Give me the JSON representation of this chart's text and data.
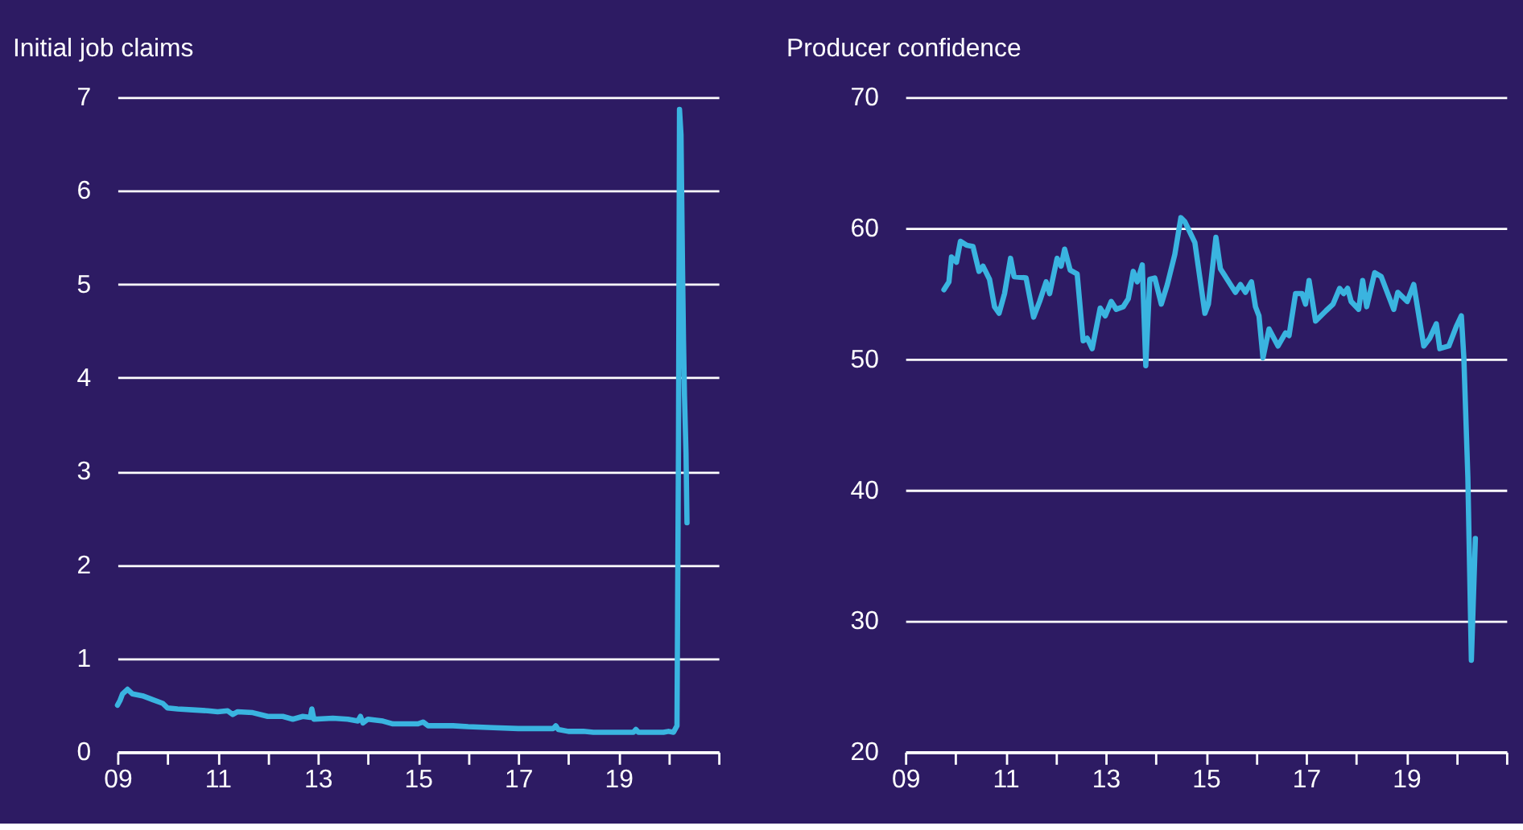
{
  "chart_data": [
    {
      "type": "line",
      "title": "Initial job claims",
      "grid": "y",
      "line_style": "solid",
      "marker": "none",
      "xlim": [
        2009,
        2021
      ],
      "ylim": [
        0,
        7
      ],
      "yticks": [
        0,
        1,
        2,
        3,
        4,
        5,
        6,
        7
      ],
      "xticks": [
        {
          "value": 2009,
          "label": "09"
        },
        {
          "value": 2010,
          "label": null
        },
        {
          "value": 2011,
          "label": "11"
        },
        {
          "value": 2012,
          "label": null
        },
        {
          "value": 2013,
          "label": "13"
        },
        {
          "value": 2014,
          "label": null
        },
        {
          "value": 2015,
          "label": "15"
        },
        {
          "value": 2016,
          "label": null
        },
        {
          "value": 2017,
          "label": "17"
        },
        {
          "value": 2018,
          "label": null
        },
        {
          "value": 2019,
          "label": "19"
        },
        {
          "value": 2020,
          "label": null
        },
        {
          "value": 2021,
          "label": null
        }
      ],
      "x": [
        2009.0,
        2009.05,
        2009.1,
        2009.2,
        2009.3,
        2009.5,
        2009.7,
        2009.9,
        2010.0,
        2010.2,
        2010.5,
        2010.8,
        2011.0,
        2011.2,
        2011.3,
        2011.4,
        2011.7,
        2012.0,
        2012.3,
        2012.5,
        2012.7,
        2012.85,
        2012.88,
        2012.92,
        2013.3,
        2013.6,
        2013.8,
        2013.85,
        2013.9,
        2014.0,
        2014.3,
        2014.5,
        2015.0,
        2015.1,
        2015.2,
        2015.7,
        2016.0,
        2016.5,
        2017.0,
        2017.5,
        2017.7,
        2017.75,
        2017.8,
        2018.0,
        2018.3,
        2018.5,
        2019.0,
        2019.3,
        2019.35,
        2019.4,
        2019.9,
        2020.0,
        2020.1,
        2020.17,
        2020.2,
        2020.22,
        2020.25,
        2020.28,
        2020.3,
        2020.32,
        2020.35,
        2020.37
      ],
      "series": [
        {
          "color": "#3ab4e0",
          "values": [
            0.5,
            0.55,
            0.62,
            0.67,
            0.62,
            0.6,
            0.56,
            0.52,
            0.47,
            0.46,
            0.45,
            0.44,
            0.43,
            0.44,
            0.4,
            0.43,
            0.42,
            0.38,
            0.38,
            0.35,
            0.38,
            0.37,
            0.46,
            0.35,
            0.36,
            0.35,
            0.33,
            0.38,
            0.31,
            0.35,
            0.33,
            0.3,
            0.3,
            0.32,
            0.28,
            0.28,
            0.27,
            0.26,
            0.25,
            0.25,
            0.25,
            0.28,
            0.24,
            0.22,
            0.22,
            0.21,
            0.21,
            0.21,
            0.24,
            0.21,
            0.21,
            0.22,
            0.21,
            0.28,
            3.3,
            6.87,
            6.6,
            5.2,
            4.4,
            3.8,
            3.2,
            2.45
          ]
        }
      ]
    },
    {
      "type": "line",
      "title": "Producer confidence",
      "grid": "y",
      "line_style": "solid",
      "marker": "none",
      "xlim": [
        2009,
        2021
      ],
      "ylim": [
        20,
        70
      ],
      "yticks": [
        20,
        30,
        40,
        50,
        60,
        70
      ],
      "xticks": [
        {
          "value": 2009,
          "label": "09"
        },
        {
          "value": 2010,
          "label": null
        },
        {
          "value": 2011,
          "label": "11"
        },
        {
          "value": 2012,
          "label": null
        },
        {
          "value": 2013,
          "label": "13"
        },
        {
          "value": 2014,
          "label": null
        },
        {
          "value": 2015,
          "label": "15"
        },
        {
          "value": 2016,
          "label": null
        },
        {
          "value": 2017,
          "label": "17"
        },
        {
          "value": 2018,
          "label": null
        },
        {
          "value": 2019,
          "label": "19"
        },
        {
          "value": 2020,
          "label": null
        },
        {
          "value": 2021,
          "label": null
        }
      ],
      "x": [
        2009.77,
        2009.87,
        2009.92,
        2010.02,
        2010.1,
        2010.22,
        2010.35,
        2010.47,
        2010.55,
        2010.68,
        2010.78,
        2010.87,
        2010.98,
        2011.1,
        2011.17,
        2011.41,
        2011.56,
        2011.68,
        2011.81,
        2011.88,
        2012.03,
        2012.11,
        2012.18,
        2012.29,
        2012.43,
        2012.55,
        2012.63,
        2012.73,
        2012.89,
        2012.99,
        2013.11,
        2013.21,
        2013.35,
        2013.45,
        2013.55,
        2013.63,
        2013.73,
        2013.8,
        2013.88,
        2013.98,
        2014.11,
        2014.23,
        2014.38,
        2014.5,
        2014.58,
        2014.78,
        2014.98,
        2015.05,
        2015.2,
        2015.29,
        2015.49,
        2015.59,
        2015.69,
        2015.79,
        2015.91,
        2015.99,
        2016.06,
        2016.14,
        2016.26,
        2016.44,
        2016.59,
        2016.66,
        2016.79,
        2016.92,
        2016.99,
        2017.06,
        2017.19,
        2017.4,
        2017.54,
        2017.67,
        2017.75,
        2017.83,
        2017.9,
        2018.05,
        2018.13,
        2018.21,
        2018.37,
        2018.5,
        2018.75,
        2018.83,
        2019.02,
        2019.15,
        2019.35,
        2019.47,
        2019.6,
        2019.67,
        2019.85,
        2020.0,
        2020.1,
        2020.15,
        2020.23,
        2020.3,
        2020.38
      ],
      "series": [
        {
          "color": "#3ab4e0",
          "values": [
            55.3,
            55.9,
            57.8,
            57.4,
            59.0,
            58.7,
            58.6,
            56.7,
            57.1,
            56.1,
            54.0,
            53.5,
            55.0,
            57.7,
            56.3,
            56.2,
            53.2,
            54.4,
            55.9,
            55.0,
            57.7,
            57.1,
            58.4,
            56.8,
            56.5,
            51.4,
            51.6,
            50.8,
            53.9,
            53.3,
            54.4,
            53.8,
            54.0,
            54.6,
            56.7,
            55.9,
            57.2,
            49.5,
            56.1,
            56.2,
            54.2,
            55.7,
            58.0,
            60.8,
            60.5,
            58.9,
            53.5,
            54.2,
            59.3,
            56.9,
            55.7,
            55.1,
            55.7,
            55.1,
            55.9,
            54.0,
            53.3,
            50.1,
            52.3,
            51.0,
            52.0,
            51.8,
            55.0,
            55.0,
            54.2,
            56.0,
            52.9,
            53.7,
            54.2,
            55.4,
            55.0,
            55.4,
            54.4,
            53.8,
            56.0,
            54.0,
            56.6,
            56.3,
            53.8,
            55.1,
            54.4,
            55.7,
            51.0,
            51.6,
            52.7,
            50.8,
            51.0,
            52.5,
            53.3,
            50.1,
            41.0,
            27.0,
            36.3
          ]
        }
      ]
    }
  ]
}
